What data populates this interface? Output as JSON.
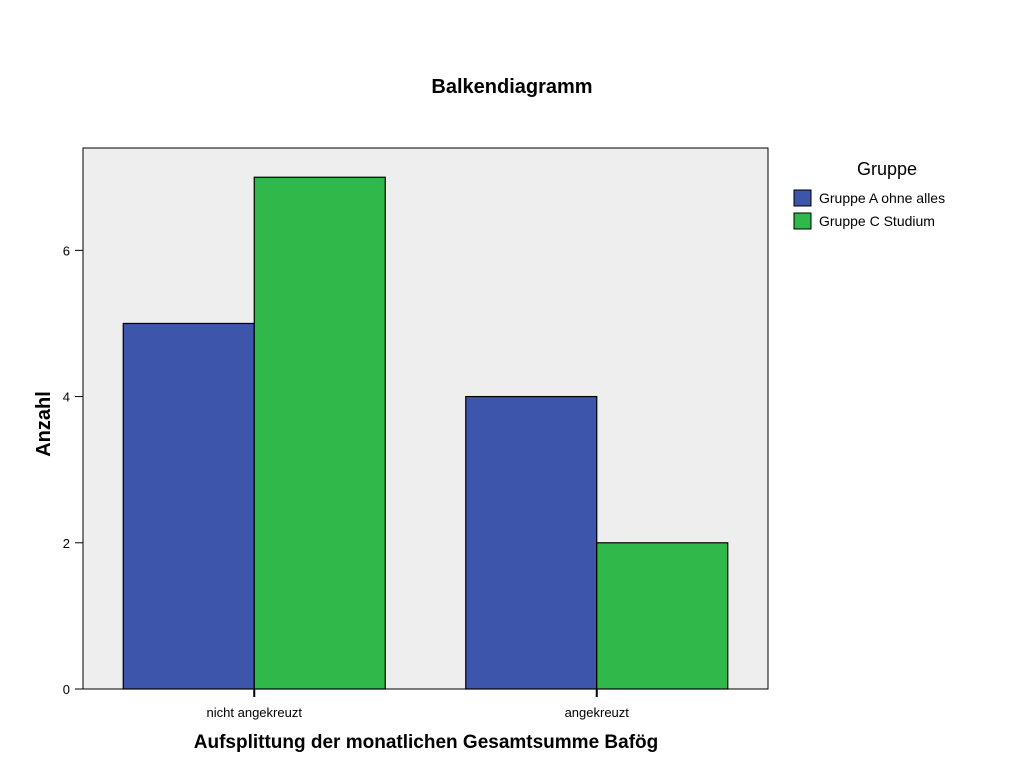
{
  "chart_data": {
    "type": "bar",
    "title": "Balkendiagramm",
    "xlabel": "Aufsplittung der monatlichen Gesamtsumme Bafög",
    "ylabel": "Anzahl",
    "categories": [
      "nicht angekreuzt",
      "angekreuzt"
    ],
    "series": [
      {
        "name": "Gruppe A ohne alles",
        "values": [
          5,
          4
        ],
        "color": "#3d55ab"
      },
      {
        "name": "Gruppe C Studium",
        "values": [
          7,
          2
        ],
        "color": "#30b84a"
      }
    ],
    "ylim": [
      0,
      7.4
    ],
    "yticks": [
      0,
      2,
      4,
      6
    ],
    "legend": {
      "title": "Gruppe",
      "position": "right"
    },
    "plot_background": "#eeeeee",
    "grid": false
  }
}
